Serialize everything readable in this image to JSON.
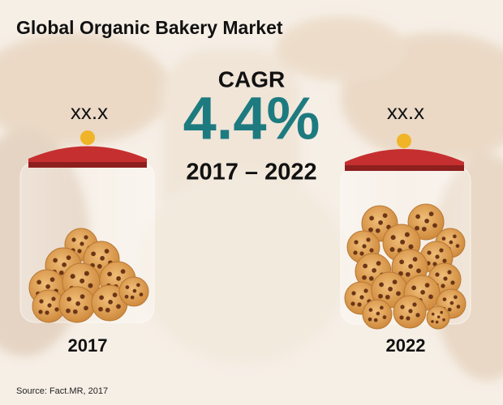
{
  "header": {
    "title": "Global Organic Bakery Market"
  },
  "growth": {
    "label": "CAGR",
    "value": "4.4%",
    "period": "2017 – 2022"
  },
  "jars": [
    {
      "value": "xx.x",
      "year": "2017"
    },
    {
      "value": "xx.x",
      "year": "2022"
    }
  ],
  "footer": {
    "source": "Source: Fact.MR, 2017"
  }
}
